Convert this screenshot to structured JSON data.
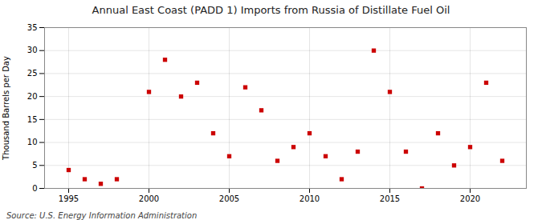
{
  "chart_data": {
    "type": "scatter",
    "title": "Annual East Coast (PADD 1) Imports from Russia of Distillate Fuel Oil",
    "ylabel": "Thousand Barrels per Day",
    "source": "Source: U.S. Energy Information Administration",
    "x": [
      1995,
      1996,
      1997,
      1998,
      2000,
      2001,
      2002,
      2003,
      2004,
      2005,
      2006,
      2007,
      2008,
      2009,
      2010,
      2011,
      2012,
      2013,
      2014,
      2015,
      2016,
      2017,
      2018,
      2019,
      2020,
      2021,
      2022
    ],
    "values": [
      4,
      2,
      1,
      2,
      21,
      28,
      20,
      23,
      12,
      7,
      22,
      17,
      6,
      9,
      12,
      7,
      2,
      8,
      30,
      21,
      8,
      0,
      12,
      5,
      9,
      23,
      6
    ],
    "color": "#cc0000",
    "marker": "square",
    "xlim": [
      1993.5,
      2023.5
    ],
    "xticks": [
      1995,
      2000,
      2005,
      2010,
      2015,
      2020
    ],
    "ylim": [
      0,
      35
    ],
    "yticks": [
      0,
      5,
      10,
      15,
      20,
      25,
      30,
      35
    ],
    "grid": true
  }
}
